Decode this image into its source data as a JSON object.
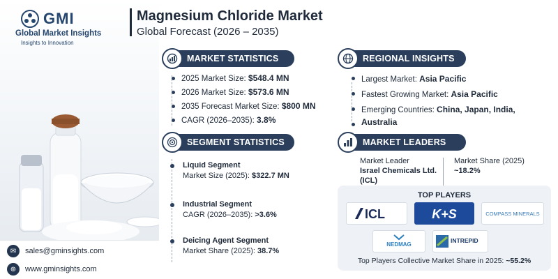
{
  "brand": {
    "logo_text": "GMI",
    "name": "Global Market Insights",
    "tagline": "Insights to Innovation"
  },
  "header": {
    "title": "Magnesium Chloride Market",
    "subtitle": "Global Forecast (2026 – 2035)"
  },
  "market_statistics": {
    "label": "MARKET STATISTICS",
    "icon": "globe-chart-icon",
    "items": [
      {
        "label": "2025 Market Size:",
        "value": "$548.4 MN"
      },
      {
        "label": "2026 Market Size:",
        "value": "$573.6 MN"
      },
      {
        "label": "2035 Forecast Market Size:",
        "value": "$800 MN"
      },
      {
        "label": "CAGR (2026–2035):",
        "value": "3.8%"
      }
    ]
  },
  "regional_insights": {
    "label": "REGIONAL INSIGHTS",
    "icon": "globe-icon",
    "items": [
      {
        "label": "Largest Market:",
        "value": "Asia Pacific"
      },
      {
        "label": "Fastest Growing Market:",
        "value": "Asia Pacific"
      },
      {
        "label": "Emerging Countries:",
        "value": "China, Japan, India,",
        "value2": "Australia"
      }
    ]
  },
  "segment_statistics": {
    "label": "SEGMENT STATISTICS",
    "icon": "target-icon",
    "items": [
      {
        "head": "Liquid Segment",
        "label": "Market Size (2025):",
        "value": "$322.7 MN"
      },
      {
        "head": "Industrial Segment",
        "label": "CAGR (2026–2035):",
        "value": ">3.6%"
      },
      {
        "head": "Deicing Agent Segment",
        "label": "Market Share (2025):",
        "value": "38.7%"
      }
    ]
  },
  "market_leaders": {
    "label": "MARKET LEADERS",
    "icon": "bar-chart-icon",
    "leader_label": "Market Leader",
    "leader_name_1": "Israel Chemicals Ltd.",
    "leader_name_2": "(ICL)",
    "share_label": "Market Share (2025)",
    "share_value": "~18.2%"
  },
  "top_players": {
    "title": "TOP PLAYERS",
    "logos": [
      "ICL",
      "K+S",
      "COMPASS MINERALS",
      "NEDMAG",
      "INTREPID"
    ],
    "footer_label": "Top Players Collective Market Share in 2025:",
    "footer_value": "~55.2%"
  },
  "contact": {
    "email": "sales@gminsights.com",
    "website": "www.gminsights.com"
  },
  "colors": {
    "primary": "#2b3f5c",
    "text": "#1f2a3a",
    "panel": "#eef1f5",
    "ks_red": "#d61f26",
    "ks_blue": "#1e4a9c",
    "icl_navy": "#1b2b59"
  }
}
